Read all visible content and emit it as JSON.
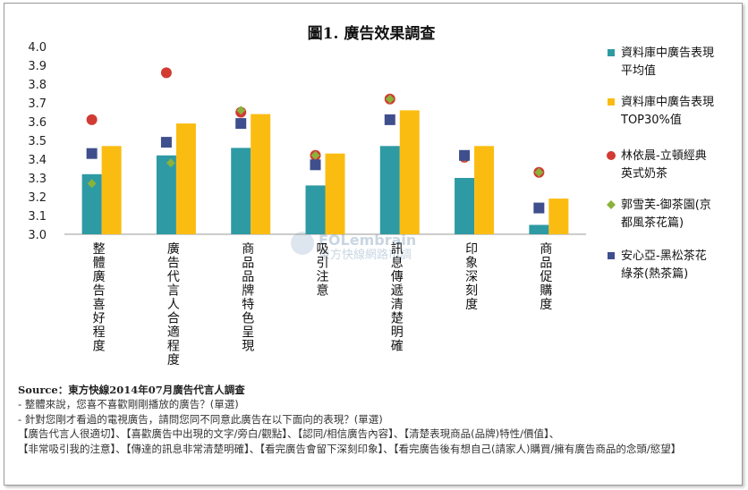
{
  "chart_data": {
    "type": "bar",
    "title": "圖1. 廣告效果調查",
    "ylim": [
      3.0,
      4.0
    ],
    "yticks": [
      "3.0",
      "3.1",
      "3.2",
      "3.3",
      "3.4",
      "3.5",
      "3.6",
      "3.7",
      "3.8",
      "3.9",
      "4.0"
    ],
    "grid": false,
    "legend_position": "right",
    "categories": [
      "整體廣告喜好程度",
      "廣告代言人合適程度",
      "商品品牌特色呈現",
      "吸引注意",
      "訊息傳遞清楚明確",
      "印象深刻度",
      "商品促購度"
    ],
    "series": [
      {
        "name": "資料庫中廣告表現平均值",
        "name_lines": [
          "資料庫中廣告表現",
          "平均值"
        ],
        "kind": "bar",
        "color": "#2e9aa3",
        "values": [
          3.32,
          3.42,
          3.46,
          3.26,
          3.47,
          3.3,
          3.05
        ]
      },
      {
        "name": "資料庫中廣告表現TOP30%值",
        "name_lines": [
          "資料庫中廣告表現",
          "TOP30%值"
        ],
        "kind": "bar",
        "color": "#fbbc12",
        "values": [
          3.47,
          3.59,
          3.64,
          3.43,
          3.66,
          3.47,
          3.19
        ]
      },
      {
        "name": "林依晨-立頓經典英式奶茶",
        "name_lines": [
          "林依晨-立頓經典",
          "英式奶茶"
        ],
        "kind": "circle",
        "color": "#d13b32",
        "values": [
          3.61,
          3.86,
          3.65,
          3.42,
          3.72,
          3.41,
          3.33
        ]
      },
      {
        "name": "郭雪芙-御茶園(京都風茶花篇)",
        "name_lines": [
          "郭雪芙-御茶園(京",
          "都風茶花篇)"
        ],
        "kind": "diamond",
        "color": "#8bb23b",
        "values": [
          3.27,
          3.38,
          3.66,
          3.42,
          3.72,
          3.41,
          3.33
        ]
      },
      {
        "name": "安心亞-黑松茶花綠茶(熱茶篇)",
        "name_lines": [
          "安心亞-黑松茶花",
          "綠茶(熱茶篇)"
        ],
        "kind": "square",
        "color": "#3f4e8c",
        "values": [
          3.43,
          3.49,
          3.59,
          3.37,
          3.61,
          3.42,
          3.14
        ]
      }
    ]
  },
  "watermark": {
    "brand": "EOLembrain",
    "sub": "東方快線網路市調"
  },
  "notes": {
    "source": "Source：東方快線2014年07月廣告代言人調查",
    "line1": "- 整體來說，您喜不喜歡剛剛播放的廣告？(單選)",
    "line2": "- 針對您剛才看過的電視廣告，請問您同不同意此廣告在以下面向的表現？(單選)",
    "line3": "【廣告代言人很適切】、【喜歡廣告中出現的文字/旁白/觀點】、【認同/相信廣告內容】、【清楚表現商品(品牌)特性/價值】、",
    "line4": "【非常吸引我的注意】、【傳達的訊息非常清楚明確】、【看完廣告會留下深刻印象】、【看完廣告後有想自己(請家人)購買/擁有廣告商品的念頭/慾望】"
  }
}
